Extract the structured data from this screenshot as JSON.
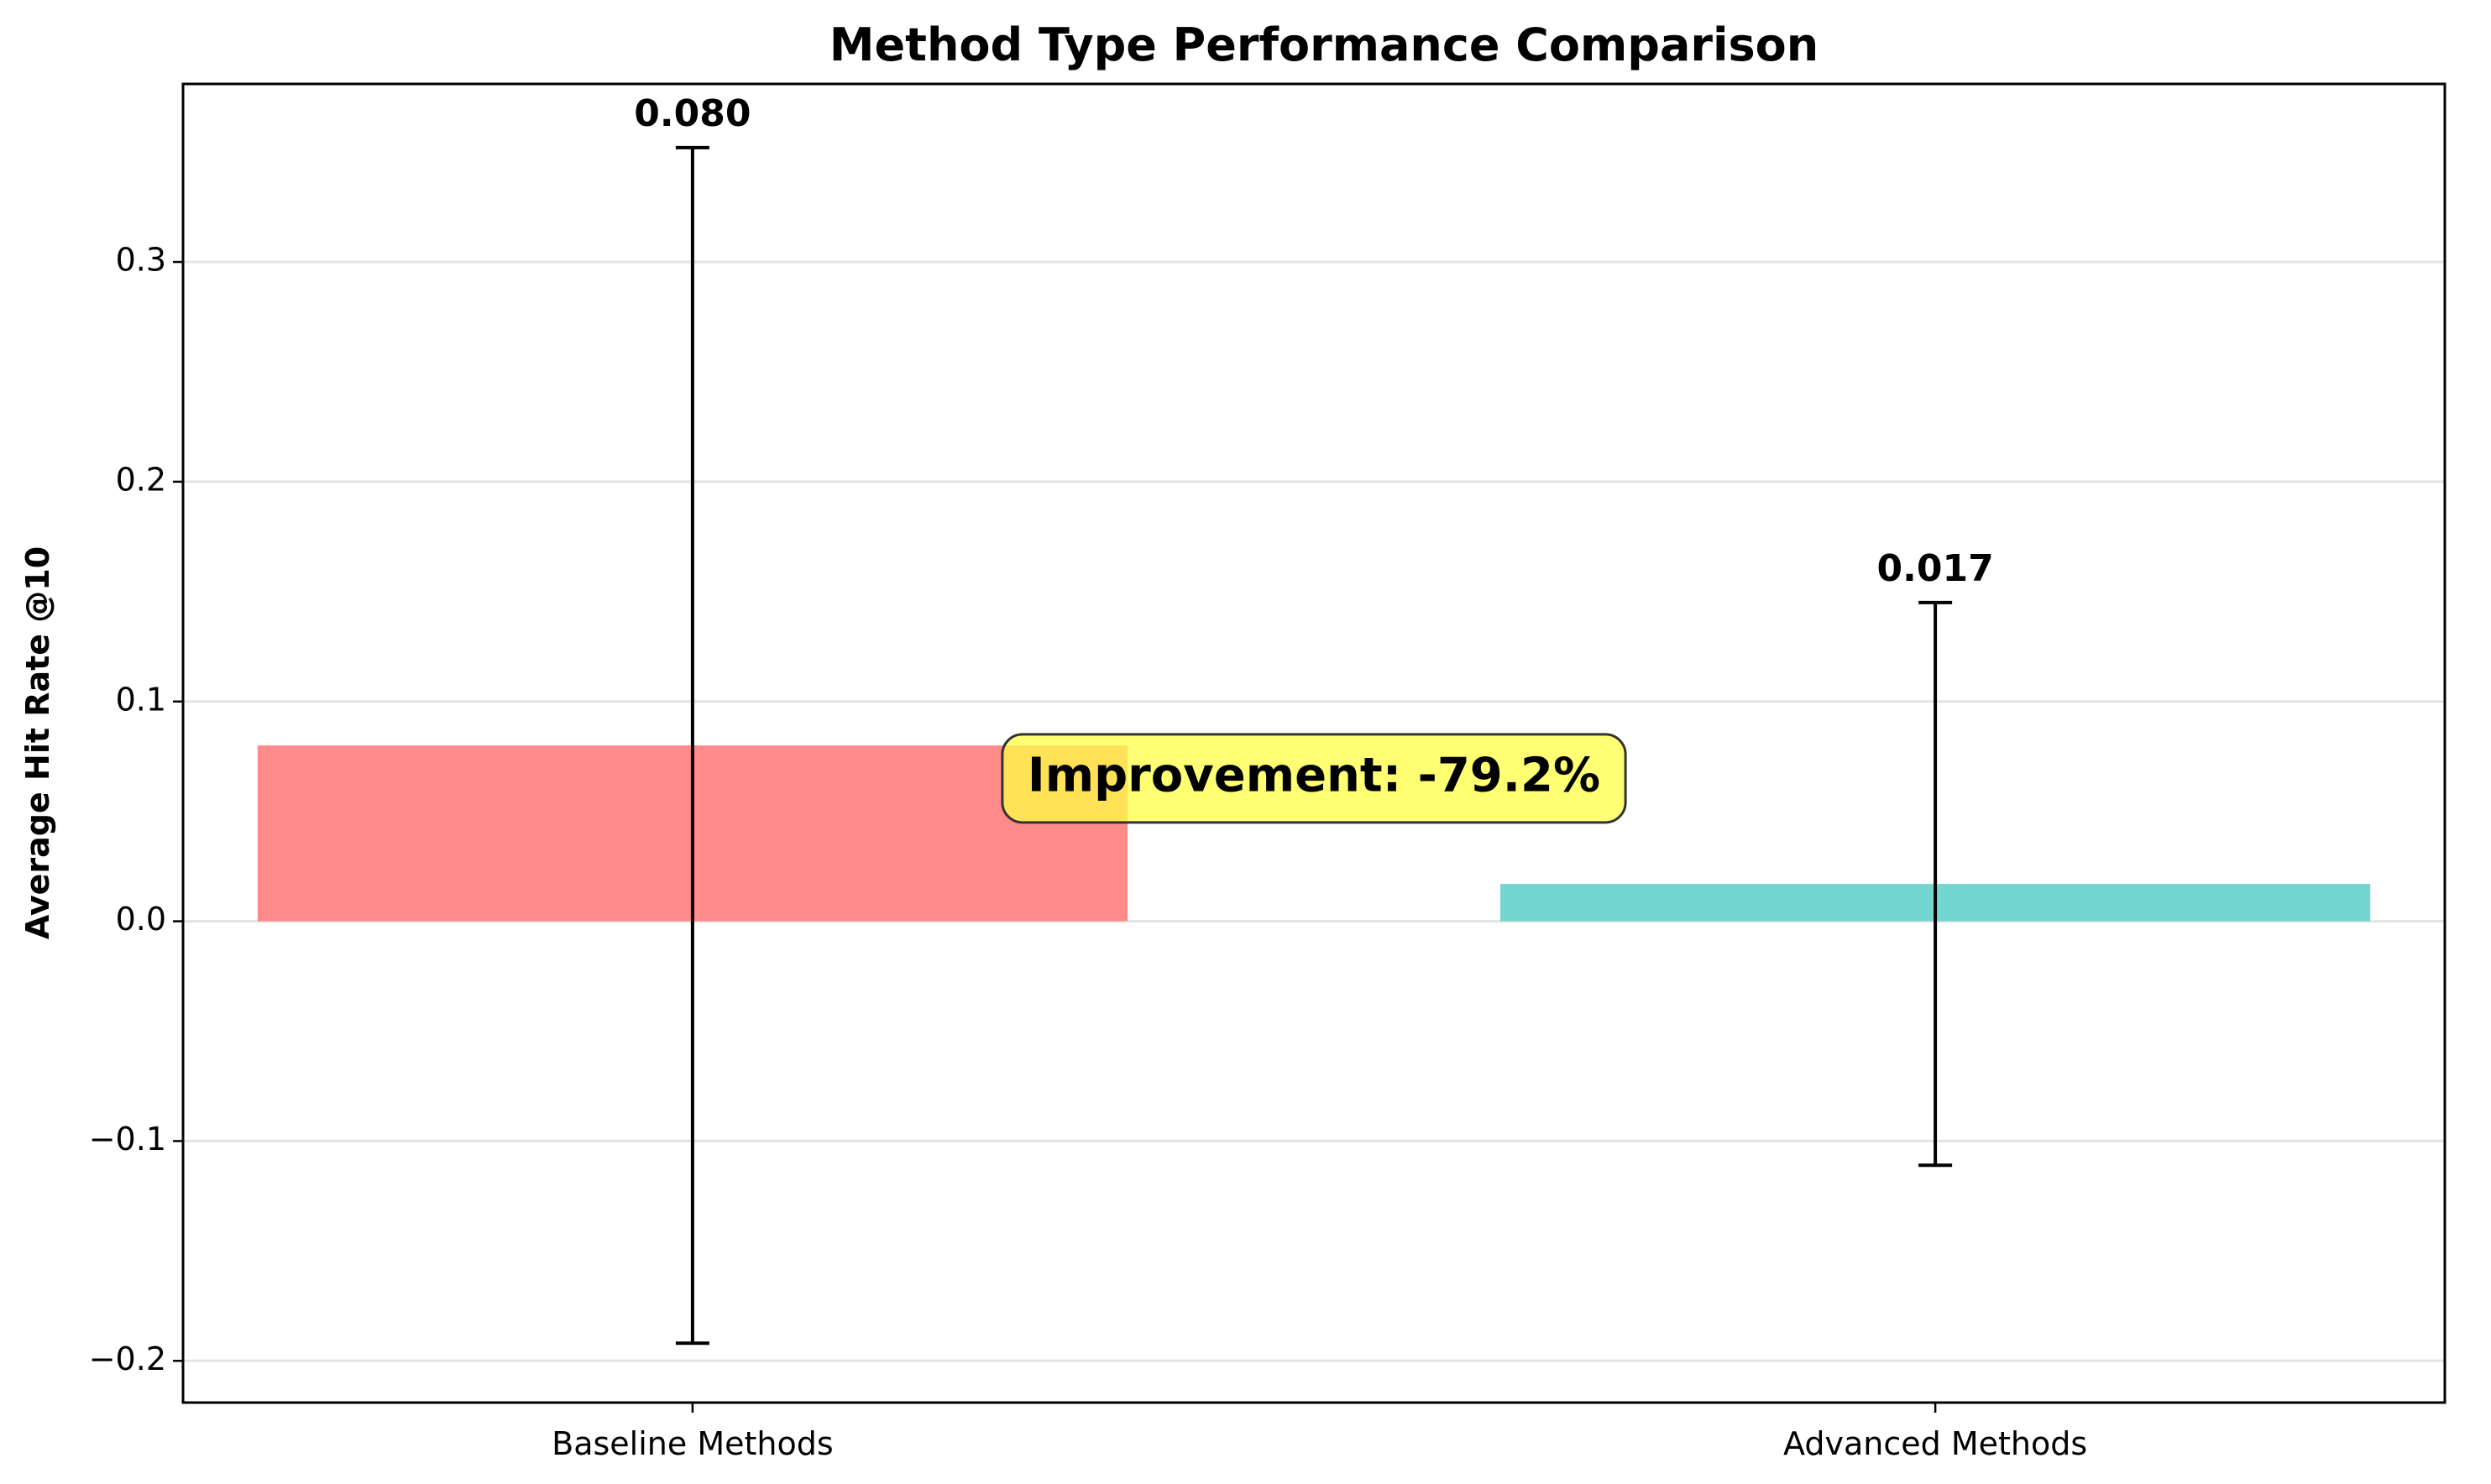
{
  "chart_data": {
    "type": "bar",
    "title": "Method Type Performance Comparison",
    "xlabel": "",
    "ylabel": "Average Hit Rate @10",
    "categories": [
      "Baseline Methods",
      "Advanced Methods"
    ],
    "values": [
      0.08,
      0.017
    ],
    "value_labels": [
      "0.080",
      "0.017"
    ],
    "error": [
      0.272,
      0.128
    ],
    "colors": [
      "#FF8A8A",
      "#74D6D1"
    ],
    "ylim": [
      -0.219,
      0.381
    ],
    "yticks": [
      -0.2,
      -0.1,
      0.0,
      0.1,
      0.2,
      0.3
    ],
    "ytick_labels": [
      "−0.2",
      "−0.1",
      "0.0",
      "0.1",
      "0.2",
      "0.3"
    ],
    "grid": "y",
    "annotation": {
      "text": "Improvement: -79.2%",
      "y": 0.065,
      "box_color": "#FFFF44"
    }
  }
}
